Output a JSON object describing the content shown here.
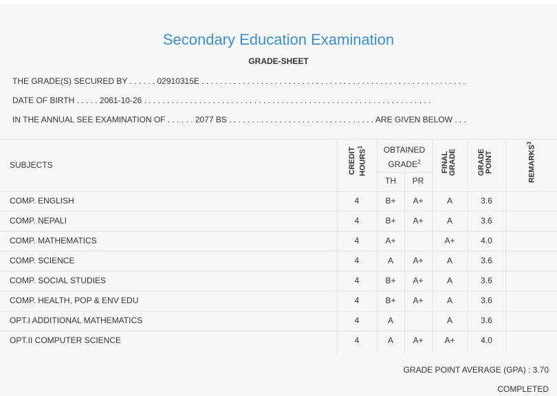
{
  "header": {
    "title": "Secondary Education Examination",
    "subtitle": "GRADE-SHEET"
  },
  "info": [
    "THE GRADE(S) SECURED BY . . . . . . 02910315E . . . . . . . . . . . . . . . . . . . . . . . . . . . . . . . . . . . . . . . . . . . . . . . . . . . . . . . . . .",
    "DATE OF BIRTH . . . . . 2061-10-26 . . . . . . . . . . . . . . . . . . . . . . . . . . . . . . . . . . . . . . . . . . . . . . . . . . . . . . . . . . . . . . .",
    "IN THE ANNUAL SEE EXAMINATION OF . . . . . . 2077 BS . . . . . . . . . . . . . . . . . . . . . . . . . . . . . . . . ARE GIVEN BELOW . . ."
  ],
  "table": {
    "head": {
      "subjects": "SUBJECTS",
      "credit_hours": "CREDIT HOURS",
      "sup1": "1",
      "obtained_grade": "OBTAINED GRADE",
      "sup2": "2",
      "th": "TH",
      "pr": "PR",
      "final_grade": "FINAL GRADE",
      "grade_point": "GRADE POINT",
      "remarks": "REMARKS",
      "sup3": "3"
    },
    "rows": [
      [
        "COMP. ENGLISH",
        "4",
        "B+",
        "A+",
        "A",
        "3.6"
      ],
      [
        "COMP. NEPALI",
        "4",
        "B+",
        "A+",
        "A",
        "3.6"
      ],
      [
        "COMP. MATHEMATICS",
        "4",
        "A+",
        null,
        "A+",
        "4.0"
      ],
      [
        "COMP. SCIENCE",
        "4",
        "A",
        "A+",
        "A",
        "3.6"
      ],
      [
        "COMP. SOCIAL STUDIES",
        "4",
        "B+",
        "A+",
        "A",
        "3.6"
      ],
      [
        "COMP. HEALTH, POP & ENV EDU",
        "4",
        "B+",
        "A+",
        "A",
        "3.6"
      ],
      [
        "OPT.I ADDITIONAL MATHEMATICS",
        "4",
        "A",
        null,
        "A",
        "3.6"
      ],
      [
        "OPT.II COMPUTER SCIENCE",
        "4",
        "A",
        "A+",
        "A+",
        "4.0"
      ]
    ]
  },
  "footer": {
    "gpa": "GRADE POINT AVERAGE (GPA) : 3.70",
    "status": "COMPLETED"
  }
}
